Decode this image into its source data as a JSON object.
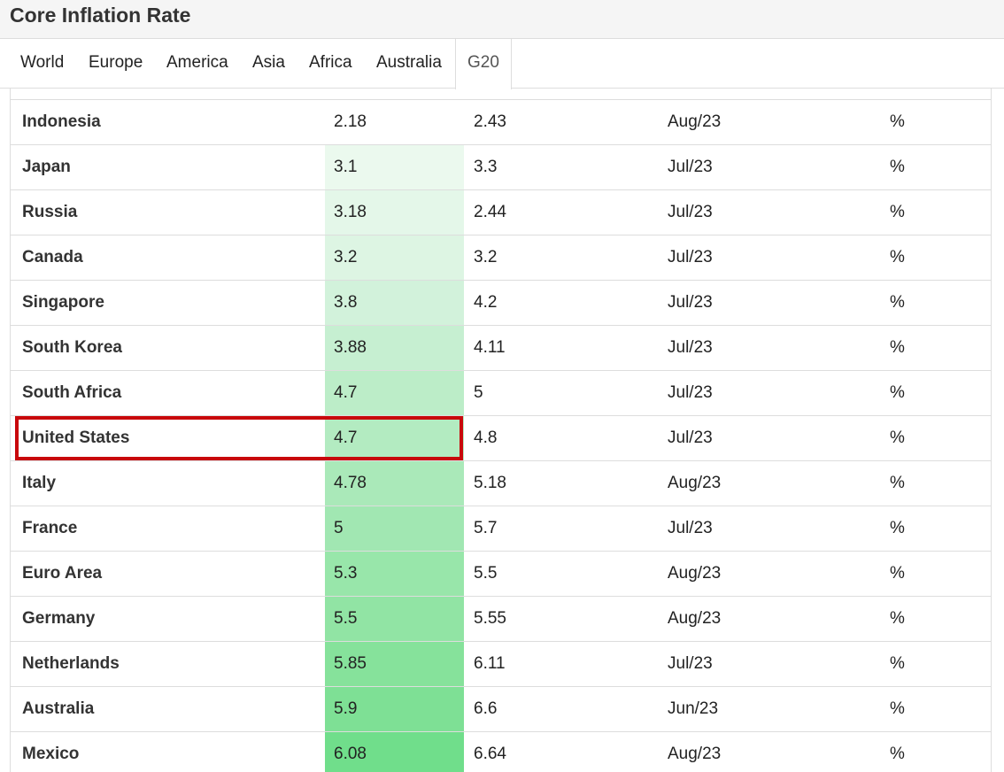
{
  "header": {
    "title": "Core Inflation Rate"
  },
  "tabs": [
    {
      "label": "World"
    },
    {
      "label": "Europe"
    },
    {
      "label": "America"
    },
    {
      "label": "Asia"
    },
    {
      "label": "Africa"
    },
    {
      "label": "Australia"
    },
    {
      "label": "G20",
      "active": true
    }
  ],
  "table": {
    "rows": [
      {
        "country": "Indonesia",
        "last": "2.18",
        "previous": "2.43",
        "reference": "Aug/23",
        "unit": "%",
        "color": "#ffffff"
      },
      {
        "country": "Japan",
        "last": "3.1",
        "previous": "3.3",
        "reference": "Jul/23",
        "unit": "%",
        "color": "#ebf9ee"
      },
      {
        "country": "Russia",
        "last": "3.18",
        "previous": "2.44",
        "reference": "Jul/23",
        "unit": "%",
        "color": "#e4f7e9"
      },
      {
        "country": "Canada",
        "last": "3.2",
        "previous": "3.2",
        "reference": "Jul/23",
        "unit": "%",
        "color": "#ddf5e3"
      },
      {
        "country": "Singapore",
        "last": "3.8",
        "previous": "4.2",
        "reference": "Jul/23",
        "unit": "%",
        "color": "#d2f2db"
      },
      {
        "country": "South Korea",
        "last": "3.88",
        "previous": "4.11",
        "reference": "Jul/23",
        "unit": "%",
        "color": "#c6efd1"
      },
      {
        "country": "South Africa",
        "last": "4.7",
        "previous": "5",
        "reference": "Jul/23",
        "unit": "%",
        "color": "#bcedc8"
      },
      {
        "country": "United States",
        "last": "4.7",
        "previous": "4.8",
        "reference": "Jul/23",
        "unit": "%",
        "color": "#b3ebc1",
        "highlighted": true
      },
      {
        "country": "Italy",
        "last": "4.78",
        "previous": "5.18",
        "reference": "Aug/23",
        "unit": "%",
        "color": "#aae9b9"
      },
      {
        "country": "France",
        "last": "5",
        "previous": "5.7",
        "reference": "Jul/23",
        "unit": "%",
        "color": "#a1e7b2"
      },
      {
        "country": "Euro Area",
        "last": "5.3",
        "previous": "5.5",
        "reference": "Aug/23",
        "unit": "%",
        "color": "#98e6aa"
      },
      {
        "country": "Germany",
        "last": "5.5",
        "previous": "5.55",
        "reference": "Aug/23",
        "unit": "%",
        "color": "#91e4a4"
      },
      {
        "country": "Netherlands",
        "last": "5.85",
        "previous": "6.11",
        "reference": "Jul/23",
        "unit": "%",
        "color": "#86e29b"
      },
      {
        "country": "Australia",
        "last": "5.9",
        "previous": "6.6",
        "reference": "Jun/23",
        "unit": "%",
        "color": "#7ee095"
      },
      {
        "country": "Mexico",
        "last": "6.08",
        "previous": "6.64",
        "reference": "Aug/23",
        "unit": "%",
        "color": "#70de8b"
      }
    ]
  }
}
